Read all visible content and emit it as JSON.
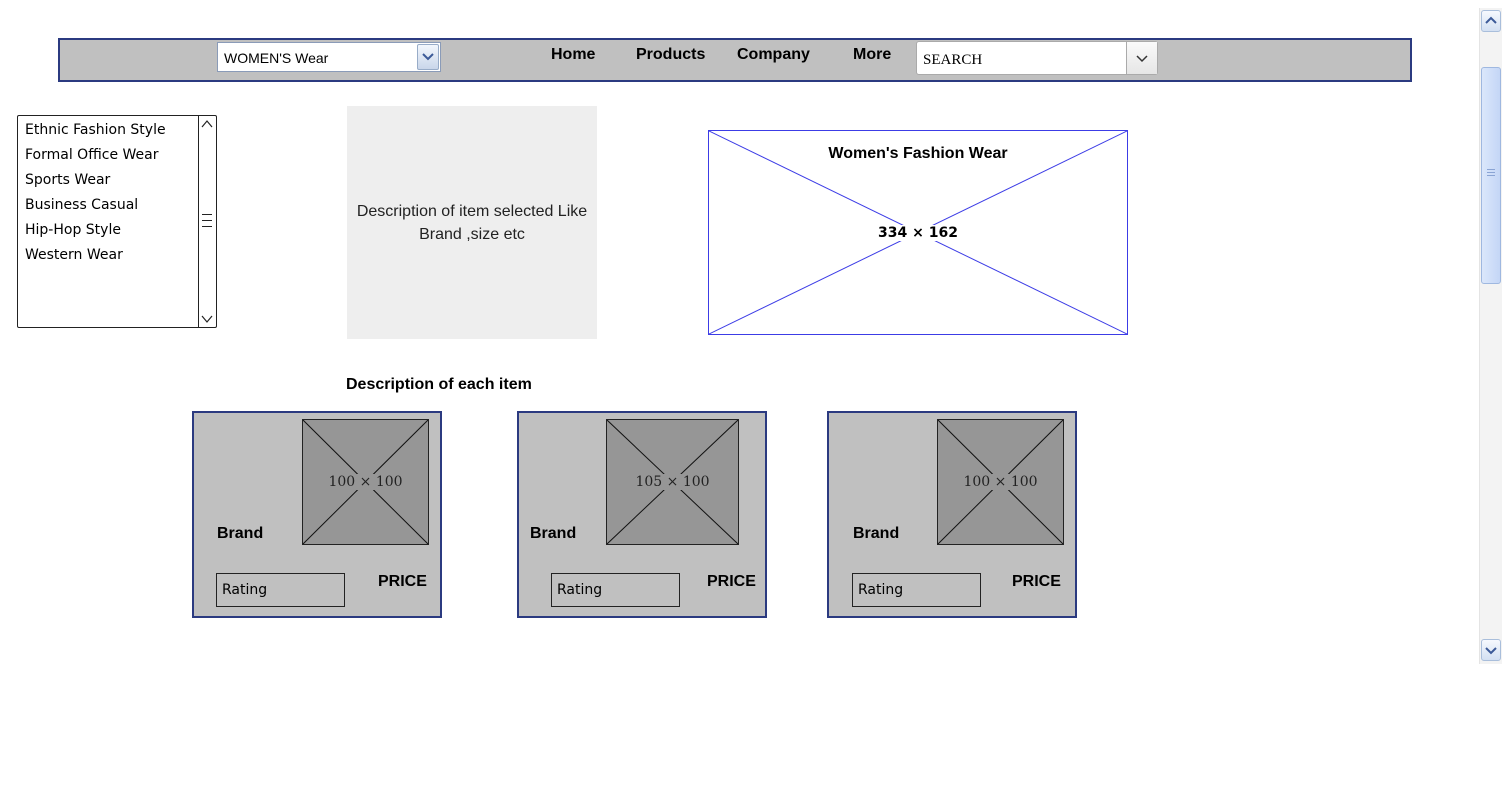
{
  "header": {
    "category_select": {
      "value": "WOMEN'S Wear"
    },
    "nav": [
      "Home",
      "Products",
      "Company",
      "More"
    ],
    "search": {
      "value": "SEARCH"
    }
  },
  "sidebar": {
    "categories": [
      "Ethnic Fashion Style",
      "Formal Office Wear",
      "Sports Wear",
      "Business Casual",
      "Hip-Hop Style",
      "Western Wear"
    ]
  },
  "description_panel": {
    "line1": "Description of item selected Like",
    "line2": "Brand ,size etc"
  },
  "banner": {
    "title": "Women's Fashion Wear",
    "dimensions": "334 × 162"
  },
  "products_section": {
    "heading": "Description of each item",
    "cards": [
      {
        "image_label": "100 × 100",
        "brand": "Brand",
        "rating": "Rating",
        "price": "PRICE"
      },
      {
        "image_label": "105 × 100",
        "brand": "Brand",
        "rating": "Rating",
        "price": "PRICE"
      },
      {
        "image_label": "100 × 100",
        "brand": "Brand",
        "rating": "Rating",
        "price": "PRICE"
      }
    ]
  },
  "icons": {
    "category_dropdown": "chevron-down-icon",
    "search_dropdown": "chevron-down-icon",
    "list_up": "chevron-up-icon",
    "list_down": "chevron-down-icon",
    "scroll_up": "chevron-up-icon",
    "scroll_down": "chevron-down-icon"
  },
  "colors": {
    "nav_bg": "#c0c0c0",
    "border_blue": "#2b3a80",
    "image_placeholder": "#969696",
    "banner_lines": "#3c3ce6"
  }
}
